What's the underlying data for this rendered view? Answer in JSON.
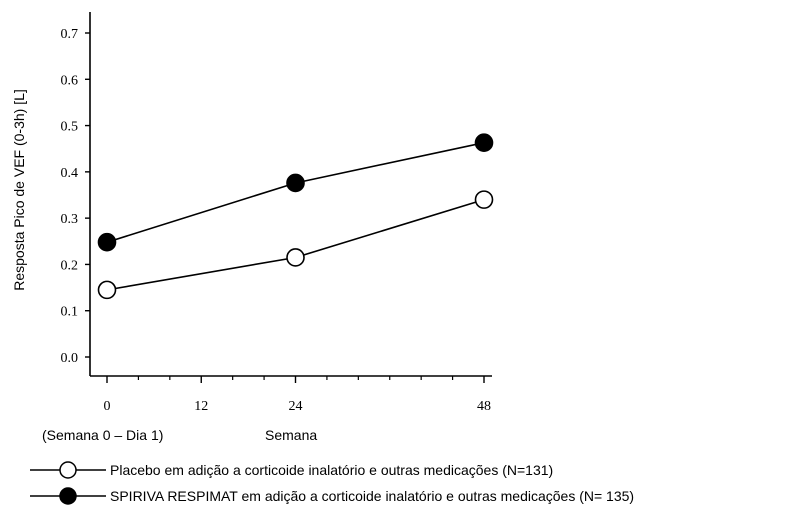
{
  "chart_data": {
    "type": "line",
    "x": [
      0,
      24,
      48
    ],
    "x_ticks": [
      "0",
      "12",
      "24",
      "48"
    ],
    "x_tick_values": [
      0,
      12,
      24,
      48
    ],
    "xlim": [
      0,
      48
    ],
    "ylim": [
      0.0,
      0.7
    ],
    "y_ticks": [
      "0.0",
      "0.1",
      "0.2",
      "0.3",
      "0.4",
      "0.5",
      "0.6",
      "0.7"
    ],
    "y_tick_values": [
      0.0,
      0.1,
      0.2,
      0.3,
      0.4,
      0.5,
      0.6,
      0.7
    ],
    "xlabel": "Semana",
    "xlabel_note": "(Semana 0 – Dia 1)",
    "ylabel": "Resposta  Pico de VEF  (0-3h)  [L]",
    "grid": false,
    "legend_position": "bottom",
    "series": [
      {
        "name": "Placebo em adição a corticoide inalatório e outras medicações (N=131)",
        "marker": "open-circle",
        "color": "#000000",
        "values": [
          0.145,
          0.215,
          0.34
        ]
      },
      {
        "name": "SPIRIVA RESPIMAT em adição a corticoide inalatório e outras medicações (N= 135)",
        "marker": "filled-circle",
        "color": "#000000",
        "values": [
          0.248,
          0.376,
          0.463
        ]
      }
    ]
  }
}
